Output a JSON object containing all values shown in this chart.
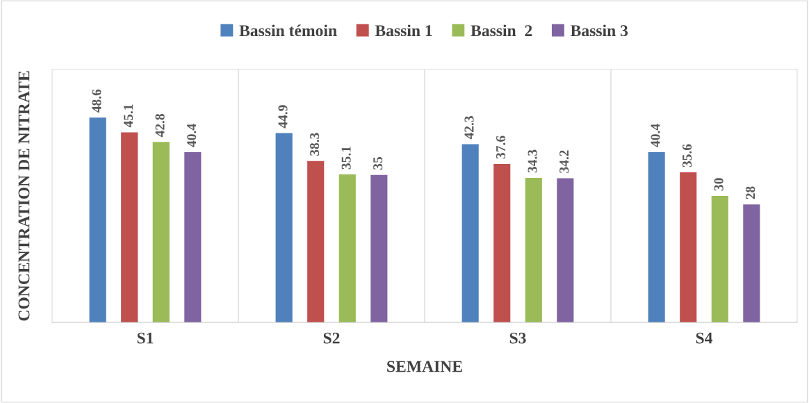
{
  "chart_data": {
    "type": "bar",
    "xlabel": "SEMAINE",
    "ylabel": "CONCENTRATION DE NITRATE",
    "categories": [
      "S1",
      "S2",
      "S3",
      "S4"
    ],
    "series": [
      {
        "name": "Bassin témoin",
        "color": "#4f81bd",
        "values": [
          48.6,
          44.9,
          42.3,
          40.4
        ]
      },
      {
        "name": "Bassin 1",
        "color": "#c0504d",
        "values": [
          45.1,
          38.3,
          37.6,
          35.6
        ]
      },
      {
        "name": "Bassin  2",
        "color": "#9bbb59",
        "values": [
          42.8,
          35.1,
          34.3,
          30
        ]
      },
      {
        "name": "Bassin 3",
        "color": "#8064a2",
        "values": [
          40.4,
          35,
          34.2,
          28
        ]
      }
    ],
    "ylim": [
      0,
      60
    ],
    "tick_labels": "x",
    "grid": "x",
    "legend": "top",
    "data_labels": true
  }
}
